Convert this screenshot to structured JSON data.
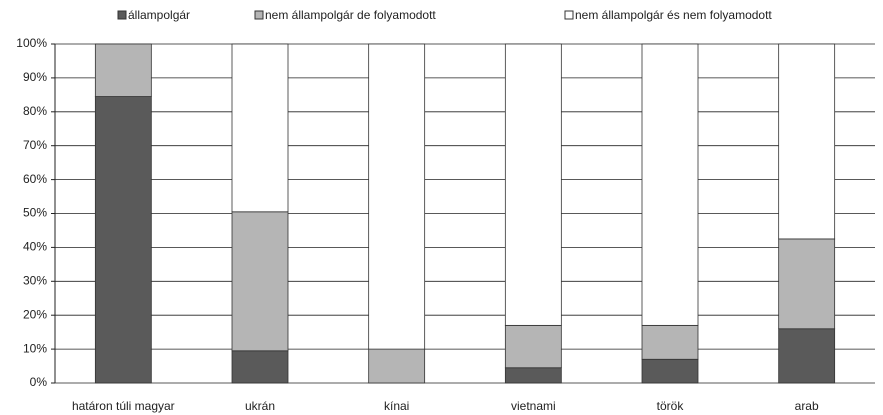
{
  "chart_data": {
    "type": "stacked_bar",
    "categories": [
      "határon túli magyar",
      "ukrán",
      "kínai",
      "vietnami",
      "török",
      "arab"
    ],
    "series": [
      {
        "name": "állampolgár",
        "color": "#5a5a5a",
        "values": [
          84.5,
          9.5,
          0,
          4.5,
          7,
          16
        ]
      },
      {
        "name": "nem állampolgár de folyamodott",
        "color": "#b5b5b5",
        "values": [
          15.5,
          41,
          10,
          12.5,
          10,
          26.5
        ]
      },
      {
        "name": "nem állampolgár és nem folyamodott",
        "color": "#ffffff",
        "values": [
          0,
          49.5,
          90,
          83,
          83,
          57.5
        ]
      }
    ],
    "ylim": [
      0,
      100
    ],
    "yticks": [
      {
        "value": 0,
        "label": "0%"
      },
      {
        "value": 10,
        "label": "10%"
      },
      {
        "value": 20,
        "label": "20%"
      },
      {
        "value": 30,
        "label": "30%"
      },
      {
        "value": 40,
        "label": "40%"
      },
      {
        "value": 50,
        "label": "50%"
      },
      {
        "value": 60,
        "label": "60%"
      },
      {
        "value": 70,
        "label": "70%"
      },
      {
        "value": 80,
        "label": "80%"
      },
      {
        "value": 90,
        "label": "90%"
      },
      {
        "value": 100,
        "label": "100%"
      }
    ],
    "grid": true,
    "legend": "top"
  }
}
